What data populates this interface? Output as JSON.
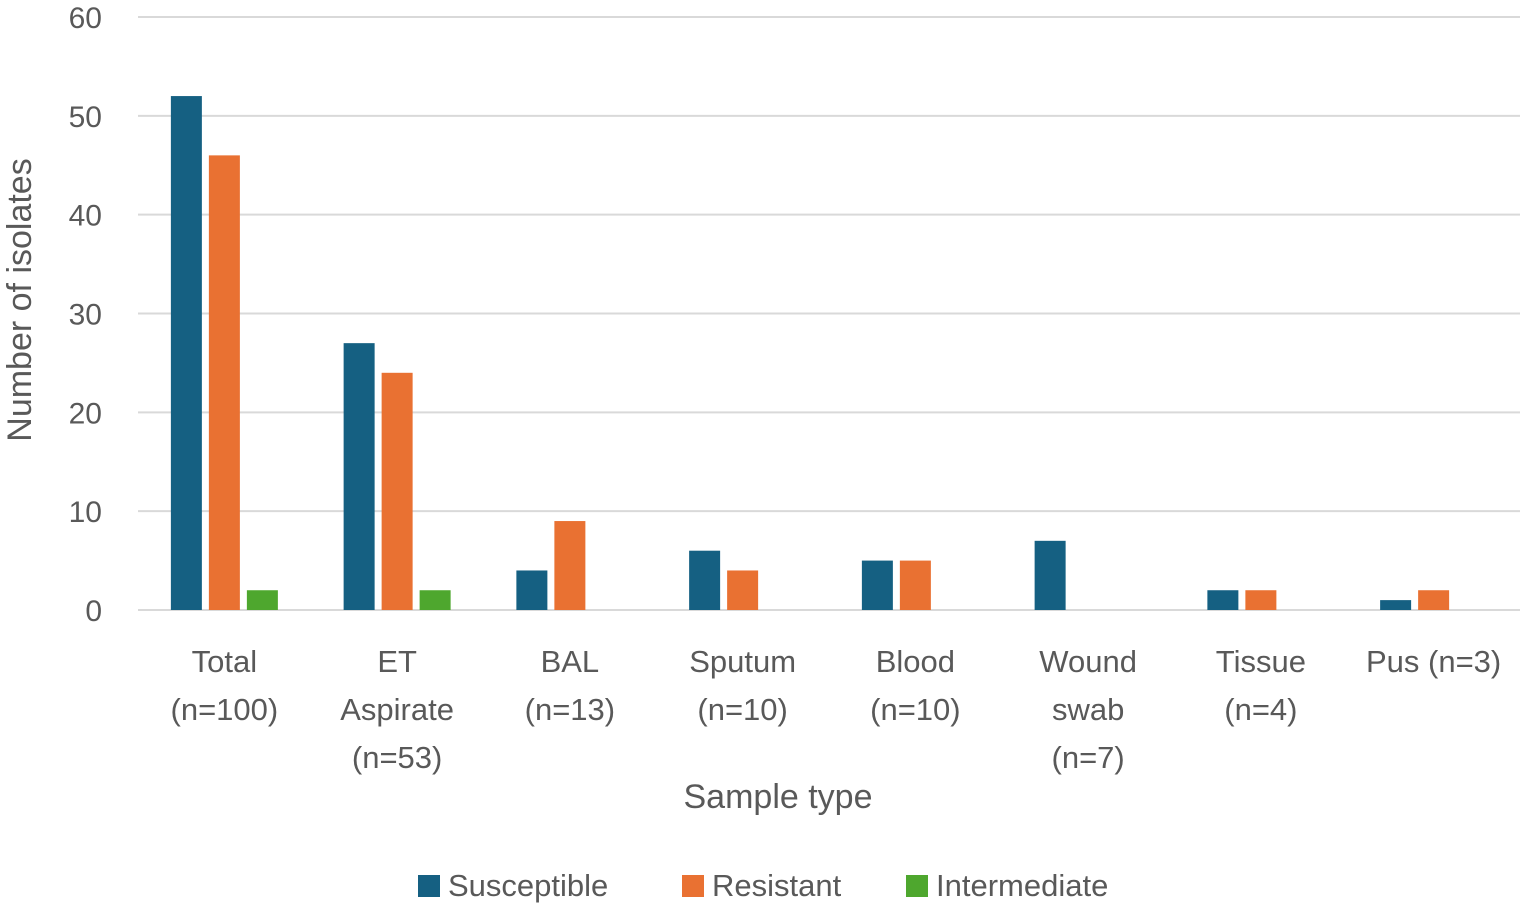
{
  "chart_data": {
    "type": "bar",
    "title": "",
    "xlabel": "Sample type",
    "ylabel": "Number of isolates",
    "ylim": [
      0,
      60
    ],
    "yticks": [
      0,
      10,
      20,
      30,
      40,
      50,
      60
    ],
    "grid": true,
    "legend_position": "bottom",
    "categories": [
      [
        "Total",
        "(n=100)"
      ],
      [
        "ET",
        "Aspirate",
        "(n=53)"
      ],
      [
        "BAL",
        "(n=13)"
      ],
      [
        "Sputum",
        "(n=10)"
      ],
      [
        "Blood",
        "(n=10)"
      ],
      [
        "Wound",
        "swab",
        "(n=7)"
      ],
      [
        "Tissue",
        "(n=4)"
      ],
      [
        "Pus (n=3)"
      ]
    ],
    "series": [
      {
        "name": "Susceptible",
        "color": "#156082",
        "values": [
          52,
          27,
          4,
          6,
          5,
          7,
          2,
          1
        ]
      },
      {
        "name": "Resistant",
        "color": "#E97132",
        "values": [
          46,
          24,
          9,
          4,
          5,
          0,
          2,
          2
        ]
      },
      {
        "name": "Intermediate",
        "color": "#4EA72E",
        "values": [
          2,
          2,
          0,
          0,
          0,
          0,
          0,
          0
        ]
      }
    ]
  }
}
